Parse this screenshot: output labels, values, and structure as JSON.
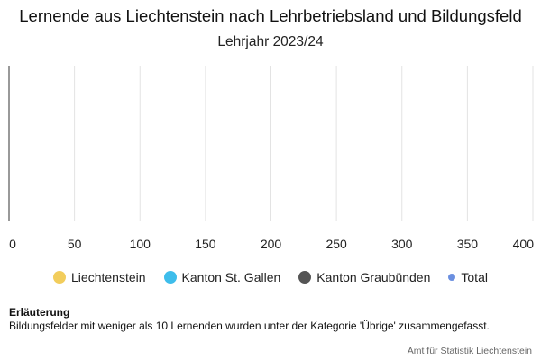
{
  "chart_data": {
    "type": "bar",
    "title": "Lernende aus Liechtenstein nach Lehrbetriebsland und Bildungsfeld",
    "subtitle": "Lehrjahr 2023/24",
    "categories": [],
    "series": [
      {
        "name": "Liechtenstein",
        "color": "#F2CD5C",
        "values": []
      },
      {
        "name": "Kanton St. Gallen",
        "color": "#3EBDEB",
        "values": []
      },
      {
        "name": "Kanton Graubünden",
        "color": "#555555",
        "values": []
      },
      {
        "name": "Total",
        "color": "#6B8FE0",
        "values": []
      }
    ],
    "xlim": [
      0,
      400
    ],
    "x_ticks": [
      "0",
      "50",
      "100",
      "150",
      "200",
      "250",
      "300",
      "350",
      "400"
    ],
    "grid": true,
    "legend_position": "bottom",
    "orientation": "horizontal"
  },
  "note": {
    "heading": "Erläuterung",
    "text": "Bildungsfelder mit weniger als 10 Lernenden wurden unter der Kategorie 'Übrige' zusammengefasst."
  },
  "source": "Amt für Statistik Liechtenstein"
}
